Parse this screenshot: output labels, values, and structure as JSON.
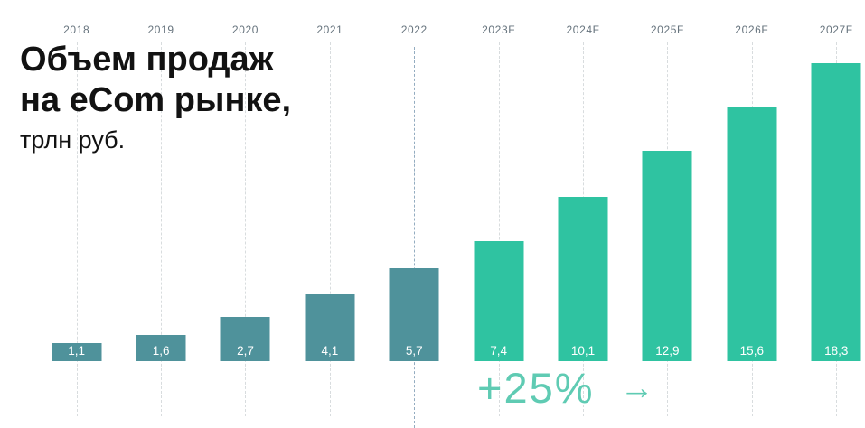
{
  "title": {
    "line1": "Объем продаж",
    "line2": "на eCom рынке,",
    "line3": "трлн руб."
  },
  "chart_data": {
    "type": "bar",
    "title": "Объем продаж на eCom рынке, трлн руб.",
    "categories": [
      "2018",
      "2019",
      "2020",
      "2021",
      "2022",
      "2023F",
      "2024F",
      "2025F",
      "2026F",
      "2027F"
    ],
    "values": [
      1.1,
      1.6,
      2.7,
      4.1,
      5.7,
      7.4,
      10.1,
      12.9,
      15.6,
      18.3
    ],
    "value_labels": [
      "1,1",
      "1,6",
      "2,7",
      "4,1",
      "5,7",
      "7,4",
      "10,1",
      "12,9",
      "15,6",
      "18,3"
    ],
    "xlabel": "",
    "ylabel": "трлн руб.",
    "ylim": [
      0,
      18.3
    ],
    "grid": "vertical-dashed",
    "legend": "none",
    "historical_count": 5,
    "colors": {
      "historical": "#4f929b",
      "forecast": "#2fc3a1",
      "highlight_gridline": "#93acc0",
      "gridline": "#d8dcde",
      "annotation": "#5fcbb3"
    },
    "annotation": {
      "text": "+25%",
      "arrow": "→"
    }
  }
}
